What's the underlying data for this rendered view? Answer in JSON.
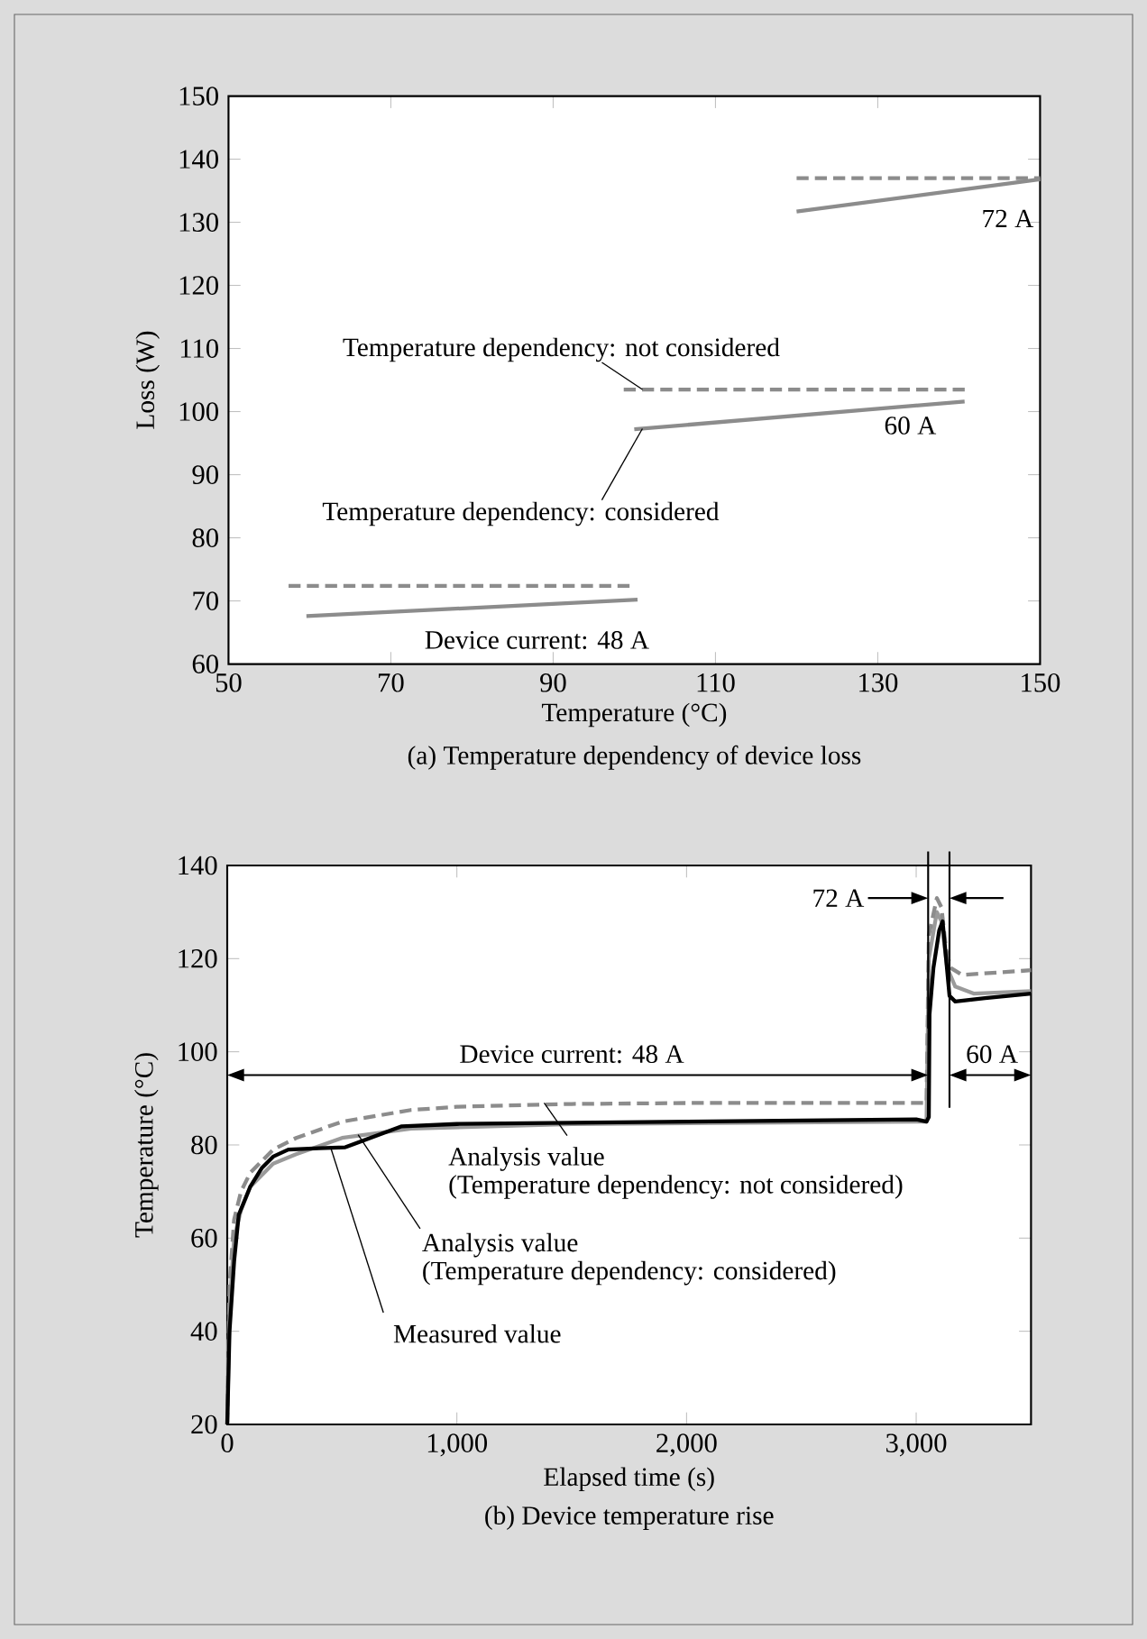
{
  "chart_data": [
    {
      "type": "line",
      "title": "(a) Temperature dependency of device loss",
      "xlabel": "Temperature (°C)",
      "ylabel": "Loss (W)",
      "xlim": [
        50,
        150
      ],
      "ylim": [
        60,
        150
      ],
      "xticks": [
        50,
        70,
        90,
        110,
        130,
        150
      ],
      "yticks": [
        60,
        70,
        80,
        90,
        100,
        110,
        120,
        130,
        140,
        150
      ],
      "series": [
        {
          "color": "#8c8c8c",
          "line_style": "dashed",
          "x": [
            57.4,
            100
          ],
          "values": [
            72.4,
            72.4
          ]
        },
        {
          "color": "#8c8c8c",
          "line_style": "solid",
          "x": [
            59.6,
            100.4
          ],
          "values": [
            67.6,
            70.2
          ]
        },
        {
          "color": "#8c8c8c",
          "line_style": "dashed",
          "x": [
            98.7,
            141
          ],
          "values": [
            103.5,
            103.5
          ]
        },
        {
          "color": "#8c8c8c",
          "line_style": "solid",
          "x": [
            100,
            140.7
          ],
          "values": [
            97.2,
            101.6
          ]
        },
        {
          "color": "#8c8c8c",
          "line_style": "dashed",
          "x": [
            120,
            150
          ],
          "values": [
            137,
            137
          ]
        },
        {
          "color": "#8c8c8c",
          "line_style": "solid",
          "x": [
            120,
            150
          ],
          "values": [
            131.7,
            136.8
          ]
        }
      ],
      "annotations": [
        "72 A",
        "60 A",
        "Device current:  48 A",
        {
          "text": "Temperature dependency:  not considered",
          "x": 101,
          "y": 103.5
        },
        {
          "text": "Temperature dependency:  considered",
          "x": 101,
          "y": 97.3
        }
      ]
    },
    {
      "type": "line",
      "title": "(b) Device temperature rise",
      "xlabel": "Elapsed time (s)",
      "ylabel": "Temperature (°C)",
      "xlim": [
        0,
        3500
      ],
      "ylim": [
        20,
        140
      ],
      "xticks": [
        0,
        {
          "value": 1000,
          "label": "1,000"
        },
        {
          "value": 2000,
          "label": "2,000"
        },
        {
          "value": 3000,
          "label": "3,000"
        }
      ],
      "yticks": [
        20,
        40,
        60,
        80,
        100,
        120,
        140
      ],
      "series": [
        {
          "color": "#9a9a9a",
          "line_style": "solid",
          "x": [
            0,
            10,
            30,
            60,
            100,
            200,
            300,
            500,
            800,
            1500,
            3000,
            3045,
            3055,
            3090,
            3110,
            3135,
            3170,
            3250,
            3500
          ],
          "values": [
            20,
            45,
            60,
            66,
            71,
            76,
            78,
            81.5,
            83.5,
            84.5,
            85,
            85,
            120,
            130,
            128,
            118,
            114,
            112.5,
            113
          ]
        },
        {
          "color": "#8c8c8c",
          "line_style": "dashed",
          "x": [
            0,
            10,
            30,
            60,
            100,
            200,
            300,
            500,
            800,
            1000,
            1500,
            2000,
            3045,
            3055,
            3090,
            3110,
            3130,
            3150,
            3200,
            3500
          ],
          "values": [
            20,
            50,
            64,
            70,
            74,
            79,
            81.5,
            85,
            87.5,
            88.2,
            88.8,
            89,
            89,
            125,
            133,
            131,
            122,
            118,
            116.5,
            117.5
          ]
        },
        {
          "color": "#000000",
          "line_style": "solid",
          "x": [
            0,
            10,
            30,
            50,
            100,
            150,
            200,
            266,
            400,
            514,
            760,
            1000,
            2000,
            3000,
            3045,
            3055,
            3058,
            3075,
            3100,
            3115,
            3130,
            3145,
            3170,
            3300,
            3500
          ],
          "values": [
            20,
            40,
            55,
            65,
            71,
            75,
            77.5,
            79,
            79.3,
            79.5,
            84,
            84.5,
            85,
            85.5,
            85,
            86,
            108,
            118,
            126,
            128,
            120,
            112,
            110.8,
            111.5,
            112.5
          ]
        }
      ],
      "ref_lines": [
        {
          "axis": "x",
          "value": 3052,
          "color": "#000000"
        },
        {
          "axis": "x",
          "value": 3145,
          "color": "#000000"
        }
      ],
      "annotations": [
        "72 A",
        "Device current:  48 A",
        "60 A",
        {
          "text": "Analysis value",
          "x": 1380,
          "y": 89
        },
        "(Temperature dependency:  not considered)",
        {
          "text": "Analysis value",
          "x": 570,
          "y": 82.2
        },
        "(Temperature dependency:  considered)",
        {
          "text": "Measured value",
          "x": 450,
          "y": 79.5
        }
      ]
    }
  ]
}
